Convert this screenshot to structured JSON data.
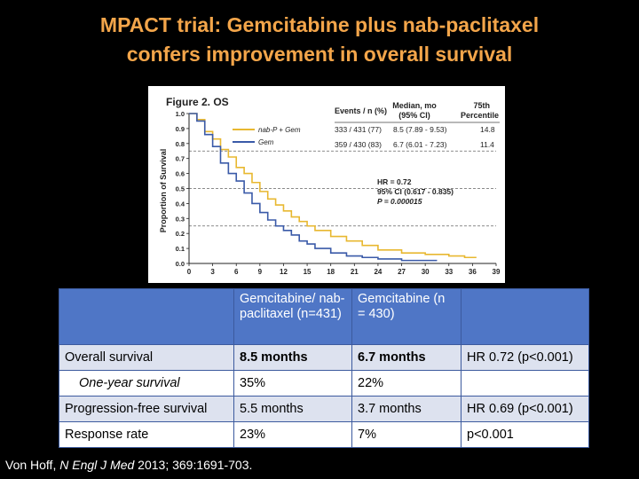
{
  "slide": {
    "title_line1": "MPACT trial: Gemcitabine plus nab-paclitaxel",
    "title_line2": "confers improvement in overall survival",
    "citation_author": "Von Hoff, ",
    "citation_journal": "N Engl J Med",
    "citation_rest": " 2013; 369:1691-703."
  },
  "chart_data": {
    "type": "line",
    "title": "Figure 2. OS",
    "xlabel": "",
    "ylabel": "Proportion of Survival",
    "xlim": [
      0,
      39
    ],
    "ylim": [
      0,
      1.0
    ],
    "x_ticks": [
      "0",
      "3",
      "6",
      "9",
      "12",
      "15",
      "18",
      "21",
      "24",
      "27",
      "30",
      "33",
      "36",
      "39"
    ],
    "y_ticks": [
      "0.0",
      "0.1",
      "0.2",
      "0.3",
      "0.4",
      "0.5",
      "0.6",
      "0.7",
      "0.8",
      "0.9",
      "1.0"
    ],
    "reference_lines_y": [
      0.25,
      0.5,
      0.75
    ],
    "series": [
      {
        "name": "nab-P + Gem",
        "color": "#e8b830",
        "x": [
          0,
          1,
          2,
          3,
          4,
          5,
          6,
          7,
          8,
          9,
          10,
          11,
          12,
          13,
          14,
          15,
          16,
          18,
          20,
          22,
          24,
          27,
          30,
          33,
          35
        ],
        "y": [
          1.0,
          0.96,
          0.88,
          0.83,
          0.76,
          0.71,
          0.64,
          0.6,
          0.54,
          0.48,
          0.43,
          0.39,
          0.35,
          0.31,
          0.28,
          0.25,
          0.22,
          0.18,
          0.15,
          0.12,
          0.09,
          0.07,
          0.06,
          0.05,
          0.04
        ]
      },
      {
        "name": "Gem",
        "color": "#3a5aa8",
        "x": [
          0,
          1,
          2,
          3,
          4,
          5,
          6,
          7,
          8,
          9,
          10,
          11,
          12,
          13,
          14,
          15,
          16,
          18,
          20,
          22,
          24,
          27,
          30
        ],
        "y": [
          1.0,
          0.95,
          0.86,
          0.78,
          0.67,
          0.6,
          0.55,
          0.47,
          0.4,
          0.34,
          0.29,
          0.25,
          0.22,
          0.19,
          0.15,
          0.13,
          0.1,
          0.07,
          0.05,
          0.04,
          0.03,
          0.02,
          0.02
        ]
      }
    ],
    "legend": {
      "header_events": "Events / n (%)",
      "header_median": [
        "Median, mo",
        "(95% CI)"
      ],
      "header_percentile": [
        "75th",
        "Percentile"
      ],
      "rows": [
        {
          "label": "nab-P + Gem",
          "events": "333 / 431 (77)",
          "median": "8.5 (7.89 - 9.53)",
          "percentile": "14.8"
        },
        {
          "label": "Gem",
          "events": "359 / 430 (83)",
          "median": "6.7 (6.01 - 7.23)",
          "percentile": "11.4"
        }
      ]
    },
    "annotation": [
      "HR = 0.72",
      "95% CI (0.617 - 0.835)",
      "P = 0.000015"
    ]
  },
  "table": {
    "headers": [
      "Gemcitabine/ nab-paclitaxel (n=431)",
      "Gemcitabine (n = 430)"
    ],
    "rows": [
      {
        "label": "Overall survival",
        "a": "8.5 months",
        "b": "6.7 months",
        "c": "HR 0.72 (p<0.001)"
      },
      {
        "label": "One-year survival",
        "a": "35%",
        "b": "22%",
        "c": ""
      },
      {
        "label": "Progression-free survival",
        "a": "5.5 months",
        "b": "3.7 months",
        "c": "HR 0.69 (p<0.001)"
      },
      {
        "label": "Response rate",
        "a": "23%",
        "b": "7%",
        "c": "p<0.001"
      }
    ]
  }
}
